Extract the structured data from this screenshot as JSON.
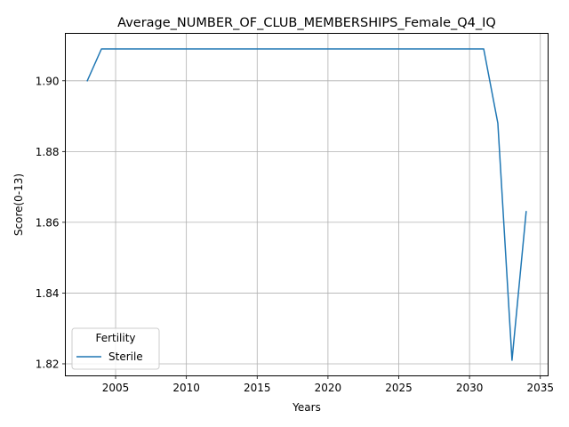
{
  "chart_data": {
    "type": "line",
    "title": "Average_NUMBER_OF_CLUB_MEMBERSHIPS_Female_Q4_IQ",
    "xlabel": "Years",
    "ylabel": "Score(0-13)",
    "xlim": [
      2001.45,
      2035.55
    ],
    "ylim": [
      1.8166,
      1.9134
    ],
    "x_ticks": [
      2005,
      2010,
      2015,
      2020,
      2025,
      2030,
      2035
    ],
    "y_ticks": [
      1.82,
      1.84,
      1.86,
      1.88,
      1.9
    ],
    "x_tick_labels": [
      "2005",
      "2010",
      "2015",
      "2020",
      "2025",
      "2030",
      "2035"
    ],
    "y_tick_labels": [
      "1.82",
      "1.84",
      "1.86",
      "1.88",
      "1.90"
    ],
    "grid": true,
    "legend": {
      "title": "Fertility",
      "placement": "lower-left"
    },
    "series": [
      {
        "name": "Sterile",
        "color": "#1f77b4",
        "x": [
          2003,
          2004,
          2005,
          2006,
          2007,
          2008,
          2009,
          2010,
          2011,
          2012,
          2013,
          2014,
          2015,
          2016,
          2017,
          2018,
          2019,
          2020,
          2021,
          2022,
          2023,
          2024,
          2025,
          2026,
          2027,
          2028,
          2029,
          2030,
          2031,
          2032,
          2033,
          2034
        ],
        "y": [
          1.9,
          1.909,
          1.909,
          1.909,
          1.909,
          1.909,
          1.909,
          1.909,
          1.909,
          1.909,
          1.909,
          1.909,
          1.909,
          1.909,
          1.909,
          1.909,
          1.909,
          1.909,
          1.909,
          1.909,
          1.909,
          1.909,
          1.909,
          1.909,
          1.909,
          1.909,
          1.909,
          1.909,
          1.909,
          1.888,
          1.821,
          1.863
        ]
      }
    ]
  }
}
